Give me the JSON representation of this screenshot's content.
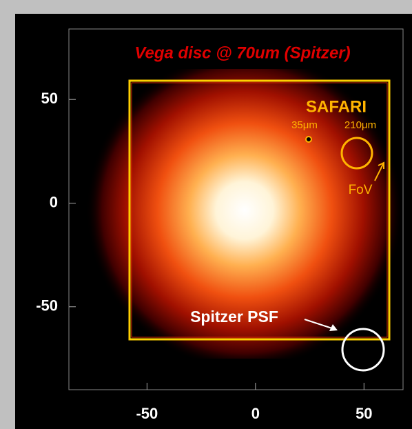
{
  "chart_data": {
    "type": "image",
    "title": "Vega disc @ 70um (Spitzer)",
    "annotations": {
      "instrument": "SAFARI",
      "short_band": "35μm",
      "long_band": "210μm",
      "fov": "FoV",
      "psf": "Spitzer PSF"
    },
    "xlim": [
      -86,
      68
    ],
    "ylim": [
      -90,
      84
    ],
    "xticks": [
      -50,
      0,
      50
    ],
    "yticks": [
      -50,
      0,
      50
    ]
  }
}
